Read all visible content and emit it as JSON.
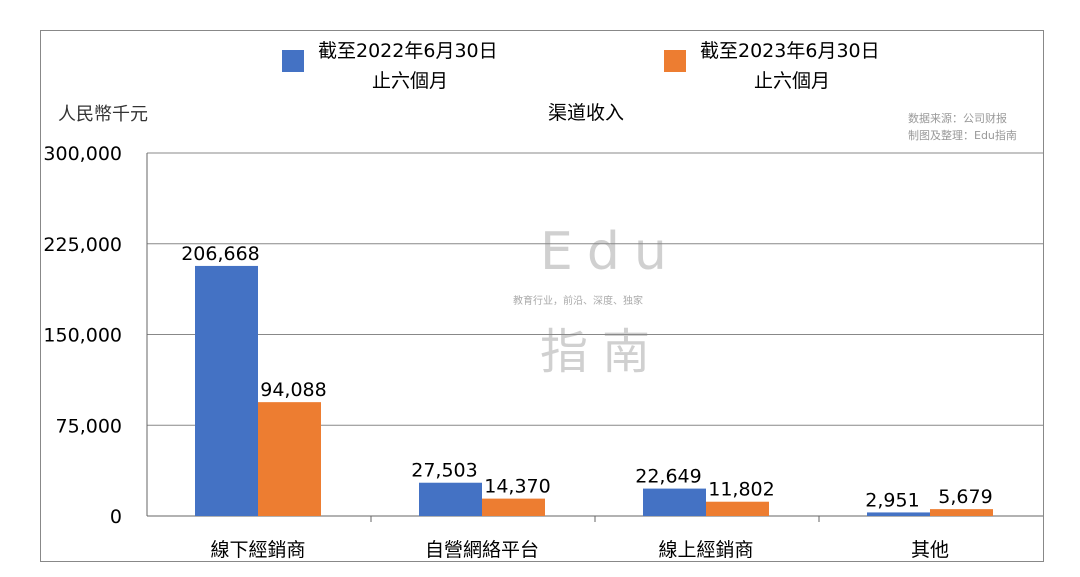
{
  "chart_data": {
    "type": "bar",
    "title": "渠道收入",
    "ylabel": "人民幣千元",
    "xlabel": "",
    "categories": [
      "線下經銷商",
      "自營網絡平台",
      "線上經銷商",
      "其他"
    ],
    "series": [
      {
        "name": "截至2022年6月30日 止六個月",
        "line1": "截至2022年6月30日",
        "line2": "止六個月",
        "color": "#4472c4",
        "values": [
          206668,
          27503,
          22649,
          2951
        ],
        "labels": [
          "206,668",
          "27,503",
          "22,649",
          "2,951"
        ]
      },
      {
        "name": "截至2023年6月30日 止六個月",
        "line1": "截至2023年6月30日",
        "line2": "止六個月",
        "color": "#ed7d31",
        "values": [
          94088,
          14370,
          11802,
          5679
        ],
        "labels": [
          "94,088",
          "14,370",
          "11,802",
          "5,679"
        ]
      }
    ],
    "ylim": [
      0,
      300000
    ],
    "yticks": [
      0,
      75000,
      150000,
      225000,
      300000
    ],
    "ytick_labels": [
      "0",
      "75,000",
      "150,000",
      "225,000",
      "300,000"
    ],
    "grid": true,
    "legend": "top",
    "annotations": {
      "source": "数据来源：公司财报",
      "maker": "制图及整理：Edu指南"
    },
    "watermark": {
      "top": "Edu",
      "tagline": "教育行业，前沿、深度、独家",
      "bottom": "指南"
    }
  }
}
